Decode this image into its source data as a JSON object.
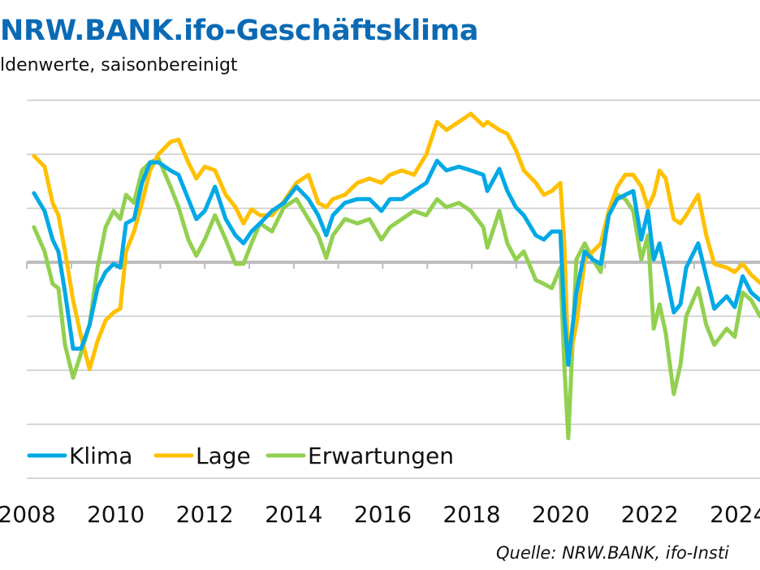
{
  "title": "NRW.BANK.ifo-Geschäftsklima",
  "subtitle": "ldenwerte, saisonbereinigt",
  "source": "Quelle: NRW.BANK, ifo-Insti",
  "chart_data": {
    "type": "line",
    "title": "NRW.BANK.ifo-Geschäftsklima",
    "xlabel": "",
    "ylabel": "",
    "xlim": [
      2008,
      2024.5
    ],
    "ylim": [
      -40,
      30
    ],
    "y_gridlines": [
      30,
      20,
      10,
      0,
      -10,
      -20,
      -30,
      -40
    ],
    "x_tick_labels": [
      "2008",
      "2010",
      "2012",
      "2014",
      "2016",
      "2018",
      "2020",
      "2022",
      "2024"
    ],
    "grid": true,
    "legend_placement": "bottom-left",
    "x": [
      2008.16,
      2008.4,
      2008.58,
      2008.71,
      2008.86,
      2009.04,
      2009.22,
      2009.41,
      2009.59,
      2009.77,
      2009.95,
      2010.1,
      2010.23,
      2010.41,
      2010.59,
      2010.77,
      2010.96,
      2011.23,
      2011.41,
      2011.63,
      2011.81,
      2012.0,
      2012.23,
      2012.47,
      2012.69,
      2012.87,
      2013.05,
      2013.24,
      2013.51,
      2013.78,
      2014.06,
      2014.33,
      2014.55,
      2014.73,
      2014.88,
      2015.15,
      2015.43,
      2015.7,
      2015.97,
      2016.16,
      2016.43,
      2016.7,
      2016.98,
      2017.22,
      2017.43,
      2017.71,
      2017.98,
      2018.26,
      2018.35,
      2018.62,
      2018.8,
      2018.99,
      2019.17,
      2019.44,
      2019.62,
      2019.8,
      2019.99,
      2020.08,
      2020.17,
      2020.35,
      2020.54,
      2020.72,
      2020.9,
      2021.08,
      2021.27,
      2021.45,
      2021.63,
      2021.81,
      2021.96,
      2022.09,
      2022.22,
      2022.36,
      2022.54,
      2022.69,
      2022.82,
      2023.09,
      2023.27,
      2023.45,
      2023.73,
      2023.91,
      2024.09,
      2024.28,
      2024.48
    ],
    "series": [
      {
        "name": "Klima",
        "color": "#00a9e6",
        "values": [
          12.8,
          9.5,
          4.2,
          2,
          -5.6,
          -16,
          -16,
          -11.6,
          -4.8,
          -1.8,
          -0.3,
          -1,
          7.2,
          8,
          14.7,
          18.5,
          18.5,
          17,
          16.2,
          11.7,
          8,
          9.5,
          14,
          8,
          5,
          3.5,
          5.7,
          7.2,
          9.5,
          11,
          14,
          11.7,
          8.7,
          5,
          8.7,
          11,
          11.7,
          11.7,
          9.5,
          11.7,
          11.7,
          13.2,
          14.7,
          18.8,
          17,
          17.7,
          17,
          16.2,
          13.2,
          17.3,
          13.2,
          10.2,
          8.7,
          5,
          4.2,
          5.7,
          5.7,
          -10,
          -19,
          -5.6,
          2,
          0.5,
          -0.3,
          8.7,
          11.7,
          12.5,
          13.2,
          4.2,
          9.5,
          0.5,
          3.5,
          -1.8,
          -9.3,
          -7.8,
          -1,
          3.5,
          -2.6,
          -8.6,
          -6.3,
          -8.3,
          -2.6,
          -5.6,
          -7
        ]
      },
      {
        "name": "Lage",
        "color": "#ffc000",
        "values": [
          19.7,
          17.7,
          11,
          8.7,
          2,
          -7,
          -13.8,
          -19.8,
          -14.6,
          -10.8,
          -9.3,
          -8.6,
          2,
          5.7,
          11,
          17,
          20,
          22.3,
          22.7,
          18.5,
          15.5,
          17.7,
          17,
          12.5,
          10.2,
          7.2,
          9.8,
          8.7,
          8.7,
          11.3,
          14.7,
          16.2,
          11,
          10.2,
          11.7,
          12.5,
          14.7,
          15.5,
          14.7,
          16.2,
          17,
          16.2,
          20,
          26,
          24.5,
          26,
          27.5,
          25.3,
          26,
          24.5,
          23.8,
          20.8,
          17,
          14.7,
          12.5,
          13.2,
          14.7,
          3.5,
          -19,
          -11.6,
          0.5,
          2,
          3.5,
          9.5,
          14,
          16.2,
          16.2,
          14,
          10.2,
          12.5,
          17,
          15.5,
          8,
          7.2,
          8.7,
          12.5,
          5,
          -0.3,
          -1,
          -1.8,
          -0.3,
          -2.3,
          -3.8
        ]
      },
      {
        "name": "Erwartungen",
        "color": "#92d050",
        "values": [
          6.5,
          2,
          -4,
          -4.8,
          -15.3,
          -21.4,
          -16.8,
          -11.6,
          -1,
          6.5,
          9.5,
          8,
          12.5,
          11,
          17,
          18.5,
          19.2,
          14,
          10.2,
          4.2,
          1.2,
          4.2,
          8.7,
          4.2,
          -0.3,
          -0.3,
          3.5,
          7.2,
          5.7,
          10.2,
          11.7,
          8,
          5,
          0.8,
          5,
          8,
          7.2,
          8,
          4.2,
          6.5,
          8,
          9.5,
          8.7,
          11.7,
          10.2,
          11,
          9.5,
          6.5,
          2.7,
          9.5,
          3.5,
          0.5,
          2,
          -3.3,
          -4,
          -4.8,
          -1,
          -19,
          -32.6,
          0.5,
          3.5,
          0.5,
          -1.8,
          9.5,
          12.5,
          11.7,
          9.5,
          0.5,
          5,
          -12.3,
          -7.8,
          -13.1,
          -24.4,
          -19,
          -10,
          -4.8,
          -11.6,
          -15.3,
          -12.3,
          -13.8,
          -5.6,
          -7,
          -10
        ]
      }
    ]
  }
}
